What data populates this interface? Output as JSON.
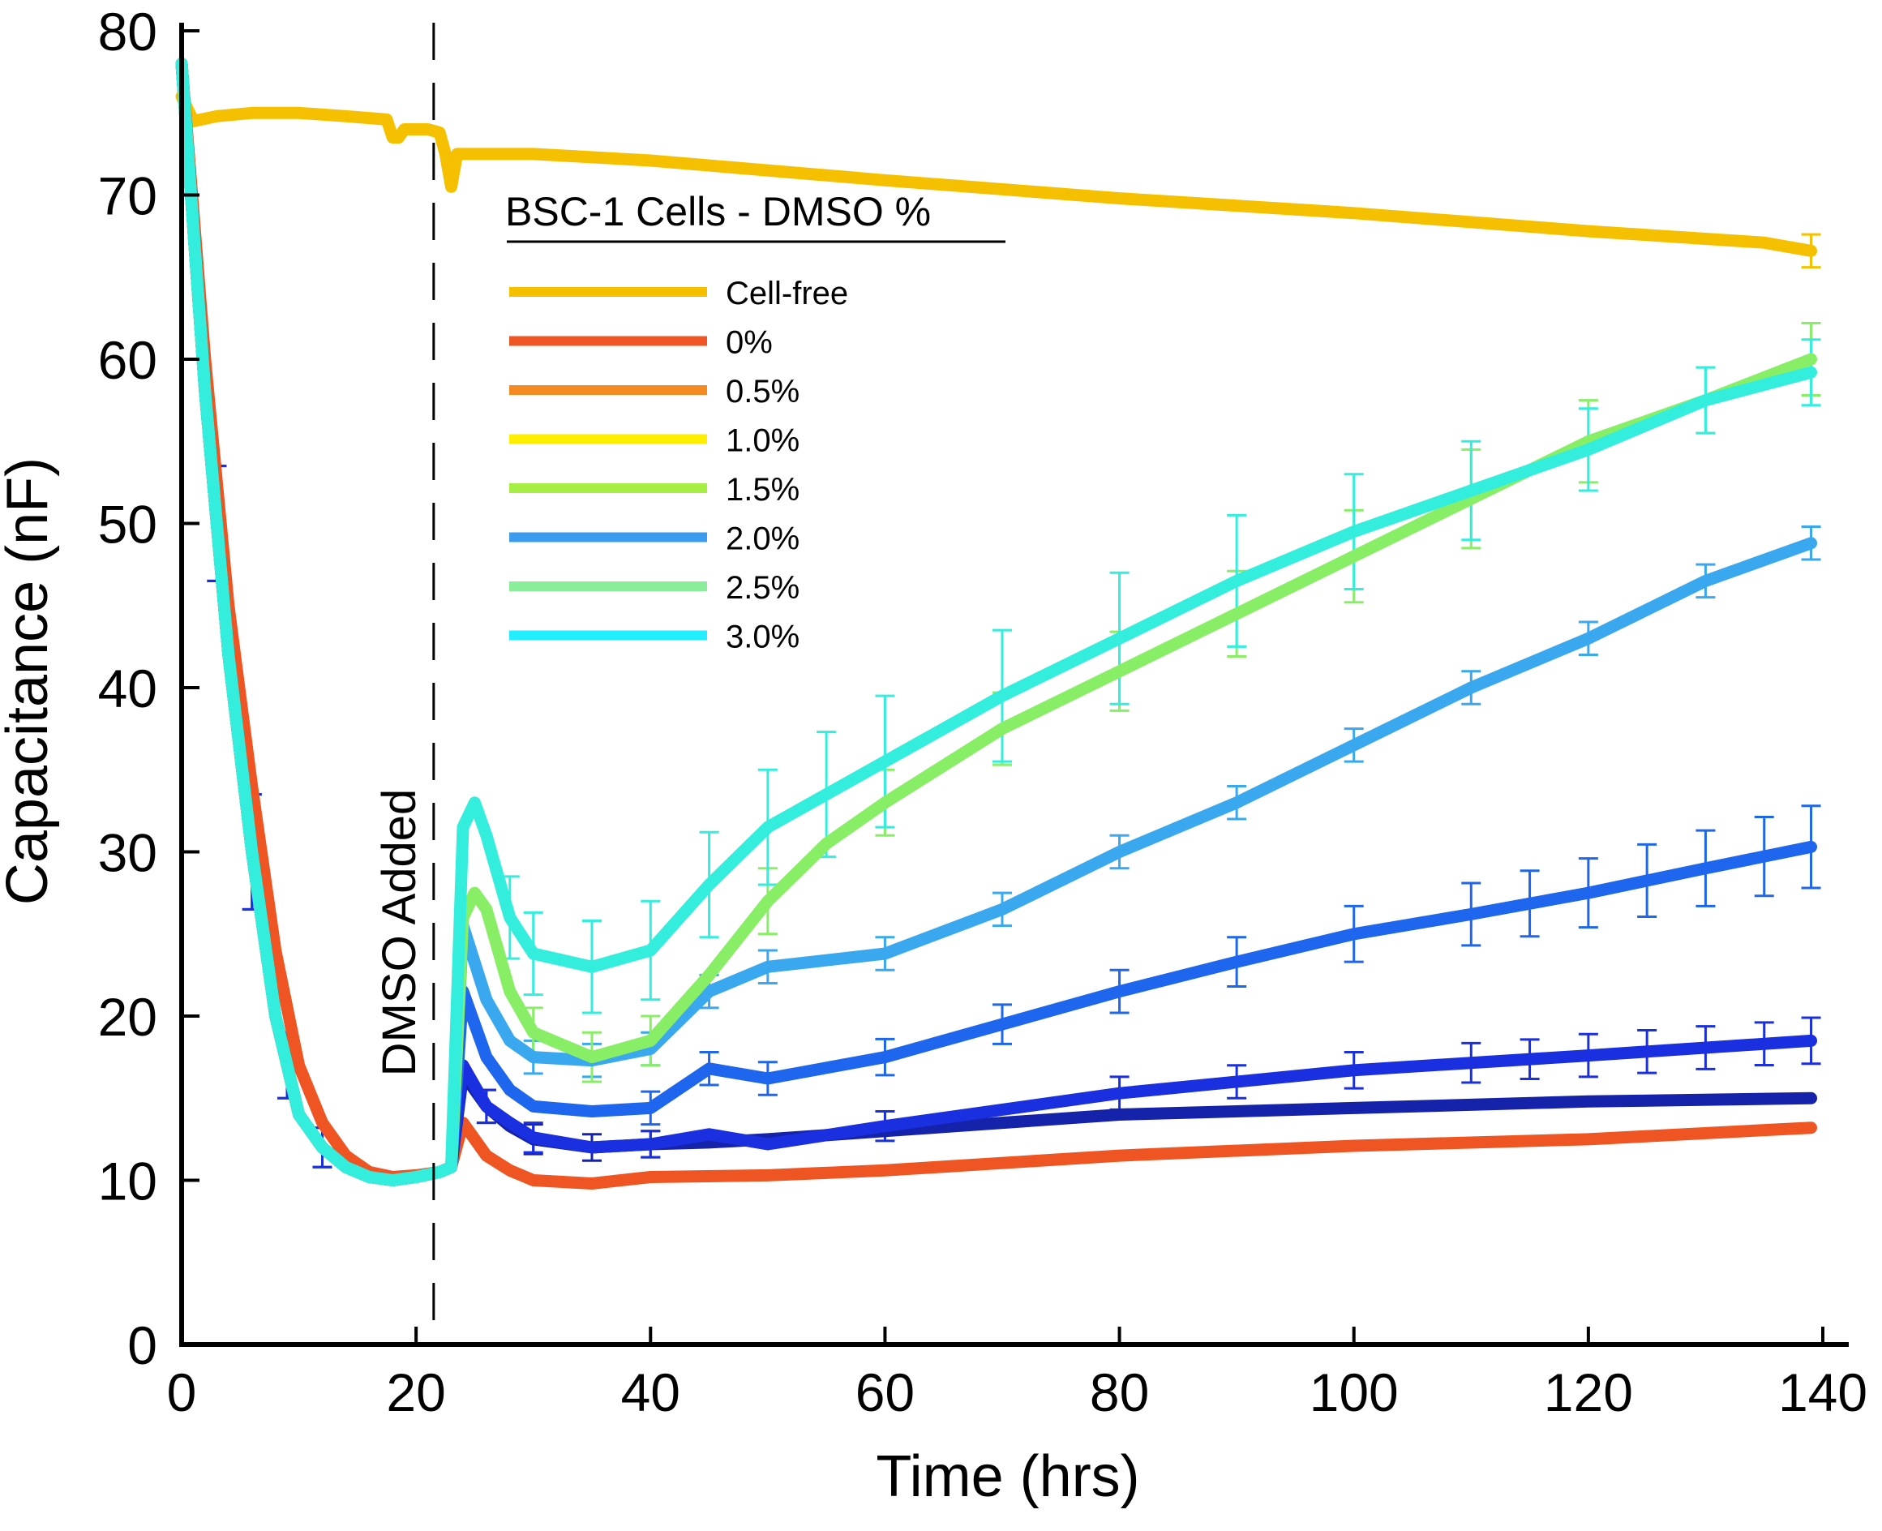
{
  "chart_data": {
    "type": "line",
    "title": "",
    "xlabel": "Time (hrs)",
    "ylabel": "Capacitance (nF)",
    "xlim": [
      0,
      140
    ],
    "ylim": [
      0,
      80
    ],
    "xticks": [
      0,
      20,
      40,
      60,
      80,
      100,
      120,
      140
    ],
    "yticks": [
      0,
      10,
      20,
      30,
      40,
      50,
      60,
      70,
      80
    ],
    "grid": false,
    "legend": {
      "title": "BSC-1 Cells - DMSO %",
      "position": "top-center"
    },
    "annotations": [
      {
        "text": "DMSO Added",
        "x": 21.5,
        "orientation": "vertical",
        "style": "dashed-line"
      }
    ],
    "series": [
      {
        "name": "Cell-free",
        "color": "#f5c000",
        "x": [
          0,
          1,
          3,
          6,
          10,
          14,
          17.5,
          18,
          18.5,
          19,
          21,
          22,
          22.5,
          23,
          23.5,
          25,
          30,
          40,
          60,
          80,
          100,
          120,
          135,
          139
        ],
        "y": [
          76,
          74.5,
          74.8,
          75,
          75,
          74.8,
          74.6,
          73.5,
          73.5,
          74,
          74,
          73.8,
          72.5,
          70.5,
          72.5,
          72.5,
          72.5,
          72.1,
          70.9,
          69.8,
          68.9,
          67.8,
          67.1,
          66.6
        ],
        "error_x": [
          139
        ],
        "error_y": [
          1.0
        ]
      },
      {
        "name": "0%",
        "color": "#ee5522",
        "x": [
          0,
          2,
          4,
          6,
          8,
          10,
          12,
          14,
          16,
          18,
          20,
          22,
          23,
          24,
          26,
          28,
          30,
          35,
          40,
          50,
          60,
          80,
          100,
          120,
          139
        ],
        "y": [
          78,
          60,
          45,
          34,
          24,
          17,
          13.5,
          11.5,
          10.5,
          10.2,
          10.3,
          10.5,
          10.8,
          13.5,
          11.5,
          10.6,
          10.0,
          9.8,
          10.2,
          10.3,
          10.6,
          11.5,
          12.1,
          12.5,
          13.2
        ],
        "error_x": [],
        "error_y": []
      },
      {
        "name": "0.5%",
        "color": "#1522aa",
        "x": [
          0,
          2,
          4,
          6,
          8,
          10,
          12,
          14,
          16,
          18,
          20,
          22,
          23,
          24,
          26,
          28,
          30,
          35,
          40,
          45,
          50,
          60,
          80,
          100,
          120,
          139
        ],
        "y": [
          78,
          58,
          42,
          30,
          20,
          14,
          12,
          10.8,
          10.2,
          10.0,
          10.2,
          10.5,
          10.8,
          16.5,
          14.5,
          13.3,
          12.5,
          12.0,
          12.2,
          12.3,
          12.5,
          13.0,
          14.0,
          14.4,
          14.8,
          15.0
        ],
        "error_x": [
          3,
          6,
          9,
          12,
          26,
          30,
          35,
          40
        ],
        "error_y": [
          3.5,
          3.5,
          2.0,
          1.2,
          1.0,
          0.9,
          0.8,
          0.8
        ]
      },
      {
        "name": "1.0%",
        "color": "#1a2fe0",
        "x": [
          0,
          2,
          4,
          6,
          8,
          10,
          12,
          14,
          16,
          18,
          20,
          22,
          23,
          24,
          26,
          28,
          30,
          35,
          40,
          45,
          50,
          60,
          80,
          100,
          120,
          139
        ],
        "y": [
          78,
          58,
          42,
          30,
          20,
          14,
          12,
          10.8,
          10.2,
          10.0,
          10.2,
          10.5,
          10.8,
          17.0,
          14.5,
          13.5,
          12.6,
          12.0,
          12.2,
          12.8,
          12.2,
          13.3,
          15.3,
          16.7,
          17.6,
          18.5
        ],
        "error_x": [
          3,
          6,
          9,
          12,
          26,
          30,
          40,
          60,
          80,
          90,
          100,
          110,
          115,
          120,
          125,
          130,
          135,
          139
        ],
        "error_y": [
          3.5,
          3.5,
          2.0,
          1.2,
          1.0,
          0.9,
          0.8,
          0.9,
          1.0,
          1.0,
          1.1,
          1.2,
          1.2,
          1.3,
          1.3,
          1.3,
          1.3,
          1.4
        ]
      },
      {
        "name": "1.5%",
        "color": "#1f66ee",
        "x": [
          0,
          2,
          4,
          6,
          8,
          10,
          12,
          14,
          16,
          18,
          20,
          22,
          23,
          24,
          26,
          28,
          30,
          35,
          40,
          45,
          50,
          60,
          70,
          80,
          90,
          100,
          110,
          120,
          130,
          139
        ],
        "y": [
          78,
          58,
          42,
          30,
          20,
          14,
          12,
          10.8,
          10.2,
          10.0,
          10.2,
          10.5,
          10.8,
          21.5,
          17.5,
          15.5,
          14.5,
          14.2,
          14.4,
          16.8,
          16.2,
          17.5,
          19.5,
          21.5,
          23.3,
          25.0,
          26.2,
          27.5,
          29.0,
          30.3
        ],
        "error_x": [
          40,
          45,
          50,
          60,
          70,
          80,
          90,
          100,
          110,
          115,
          120,
          125,
          130,
          135,
          139
        ],
        "error_y": [
          1.0,
          1.0,
          1.0,
          1.1,
          1.2,
          1.3,
          1.5,
          1.7,
          1.9,
          2.0,
          2.1,
          2.2,
          2.3,
          2.4,
          2.5
        ]
      },
      {
        "name": "2.0%",
        "color": "#3aa8ee",
        "x": [
          0,
          2,
          4,
          6,
          8,
          10,
          12,
          14,
          16,
          18,
          20,
          22,
          23,
          24,
          26,
          28,
          30,
          35,
          40,
          45,
          50,
          60,
          70,
          80,
          90,
          100,
          110,
          120,
          130,
          139
        ],
        "y": [
          78,
          58,
          42,
          30,
          20,
          14,
          12,
          10.8,
          10.2,
          10.0,
          10.2,
          10.5,
          10.8,
          25.5,
          21.0,
          18.5,
          17.5,
          17.3,
          18.0,
          21.5,
          23.0,
          23.8,
          26.5,
          30.0,
          33.0,
          36.5,
          40.0,
          43.0,
          46.5,
          48.8
        ],
        "error_x": [
          30,
          35,
          40,
          45,
          50,
          60,
          70,
          80,
          90,
          100,
          110,
          120,
          130,
          139
        ],
        "error_y": [
          1.0,
          1.0,
          1.0,
          1.0,
          1.0,
          1.0,
          1.0,
          1.0,
          1.0,
          1.0,
          1.0,
          1.0,
          1.0,
          1.0
        ]
      },
      {
        "name": "2.5%",
        "color": "#88ee66",
        "x": [
          0,
          2,
          4,
          6,
          8,
          10,
          12,
          14,
          16,
          18,
          20,
          22,
          23,
          24,
          25,
          26,
          28,
          30,
          35,
          40,
          45,
          50,
          55,
          60,
          70,
          80,
          90,
          100,
          110,
          120,
          130,
          139
        ],
        "y": [
          78,
          58,
          42,
          30,
          20,
          14,
          12,
          10.8,
          10.2,
          10.0,
          10.2,
          10.5,
          10.8,
          26.0,
          27.5,
          26.5,
          21.5,
          19.0,
          17.5,
          18.5,
          22.5,
          27.0,
          30.5,
          33.0,
          37.5,
          41.0,
          44.5,
          48.0,
          51.5,
          55.0,
          57.5,
          60.0
        ],
        "error_x": [
          30,
          35,
          40,
          50,
          60,
          70,
          80,
          90,
          100,
          110,
          120,
          130,
          139
        ],
        "error_y": [
          1.5,
          1.5,
          1.5,
          2.0,
          2.0,
          2.2,
          2.4,
          2.6,
          2.8,
          3.0,
          2.5,
          2.0,
          2.2
        ]
      },
      {
        "name": "3.0%",
        "color": "#33eedd",
        "x": [
          0,
          2,
          4,
          6,
          8,
          10,
          12,
          14,
          16,
          18,
          20,
          22,
          23,
          24,
          25,
          26,
          28,
          30,
          35,
          40,
          45,
          50,
          55,
          60,
          70,
          80,
          90,
          100,
          110,
          120,
          130,
          139
        ],
        "y": [
          78,
          58,
          42,
          30,
          20,
          14,
          12,
          10.8,
          10.2,
          10.0,
          10.2,
          10.5,
          10.8,
          31.5,
          33.0,
          31.0,
          26.0,
          23.8,
          23.0,
          24.0,
          28.0,
          31.5,
          33.5,
          35.5,
          39.5,
          43.0,
          46.5,
          49.5,
          52.0,
          54.5,
          57.5,
          59.2
        ],
        "error_x": [
          28,
          30,
          35,
          40,
          45,
          50,
          55,
          60,
          70,
          80,
          90,
          100,
          110,
          120,
          130,
          139
        ],
        "error_y": [
          2.5,
          2.5,
          2.8,
          3.0,
          3.2,
          3.5,
          3.8,
          4.0,
          4.0,
          4.0,
          4.0,
          3.5,
          3.0,
          2.5,
          2.0,
          2.0
        ]
      }
    ]
  }
}
